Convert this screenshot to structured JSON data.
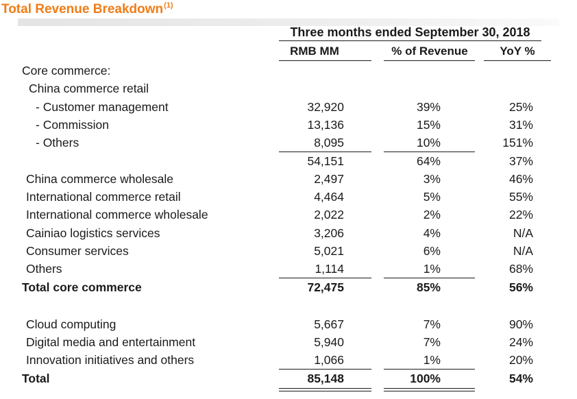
{
  "title": "Total Revenue Breakdown",
  "title_note": "(1)",
  "header": {
    "period": "Three months ended September 30, 2018",
    "col_rmb": "RMB MM",
    "col_pct": "% of Revenue",
    "col_yoy": "YoY %"
  },
  "rows": [
    {
      "label": "Core commerce:",
      "rmb": "",
      "pct": "",
      "yoy": ""
    },
    {
      "label": "China commerce retail",
      "rmb": "",
      "pct": "",
      "yoy": ""
    },
    {
      "label": "- Customer management",
      "rmb": "32,920",
      "pct": "39%",
      "yoy": "25%"
    },
    {
      "label": "- Commission",
      "rmb": "13,136",
      "pct": "15%",
      "yoy": "31%"
    },
    {
      "label": "- Others",
      "rmb": "8,095",
      "pct": "10%",
      "yoy": "151%"
    },
    {
      "label": "",
      "rmb": "54,151",
      "pct": "64%",
      "yoy": "37%"
    },
    {
      "label": "China commerce wholesale",
      "rmb": "2,497",
      "pct": "3%",
      "yoy": "46%"
    },
    {
      "label": "International commerce retail",
      "rmb": "4,464",
      "pct": "5%",
      "yoy": "55%"
    },
    {
      "label": "International commerce wholesale",
      "rmb": "2,022",
      "pct": "2%",
      "yoy": "22%"
    },
    {
      "label": "Cainiao logistics services",
      "rmb": "3,206",
      "pct": "4%",
      "yoy": "N/A"
    },
    {
      "label": "Consumer services",
      "rmb": "5,021",
      "pct": "6%",
      "yoy": "N/A"
    },
    {
      "label": "Others",
      "rmb": "1,114",
      "pct": "1%",
      "yoy": "68%"
    },
    {
      "label": "Total core commerce",
      "rmb": "72,475",
      "pct": "85%",
      "yoy": "56%"
    },
    {
      "label": "Cloud computing",
      "rmb": "5,667",
      "pct": "7%",
      "yoy": "90%"
    },
    {
      "label": "Digital media and entertainment",
      "rmb": "5,940",
      "pct": "7%",
      "yoy": "24%"
    },
    {
      "label": "Innovation initiatives and others",
      "rmb": "1,066",
      "pct": "1%",
      "yoy": "20%"
    },
    {
      "label": "Total",
      "rmb": "85,148",
      "pct": "100%",
      "yoy": "54%"
    }
  ],
  "colors": {
    "title": "#f07c16",
    "text": "#1a1a1a"
  }
}
